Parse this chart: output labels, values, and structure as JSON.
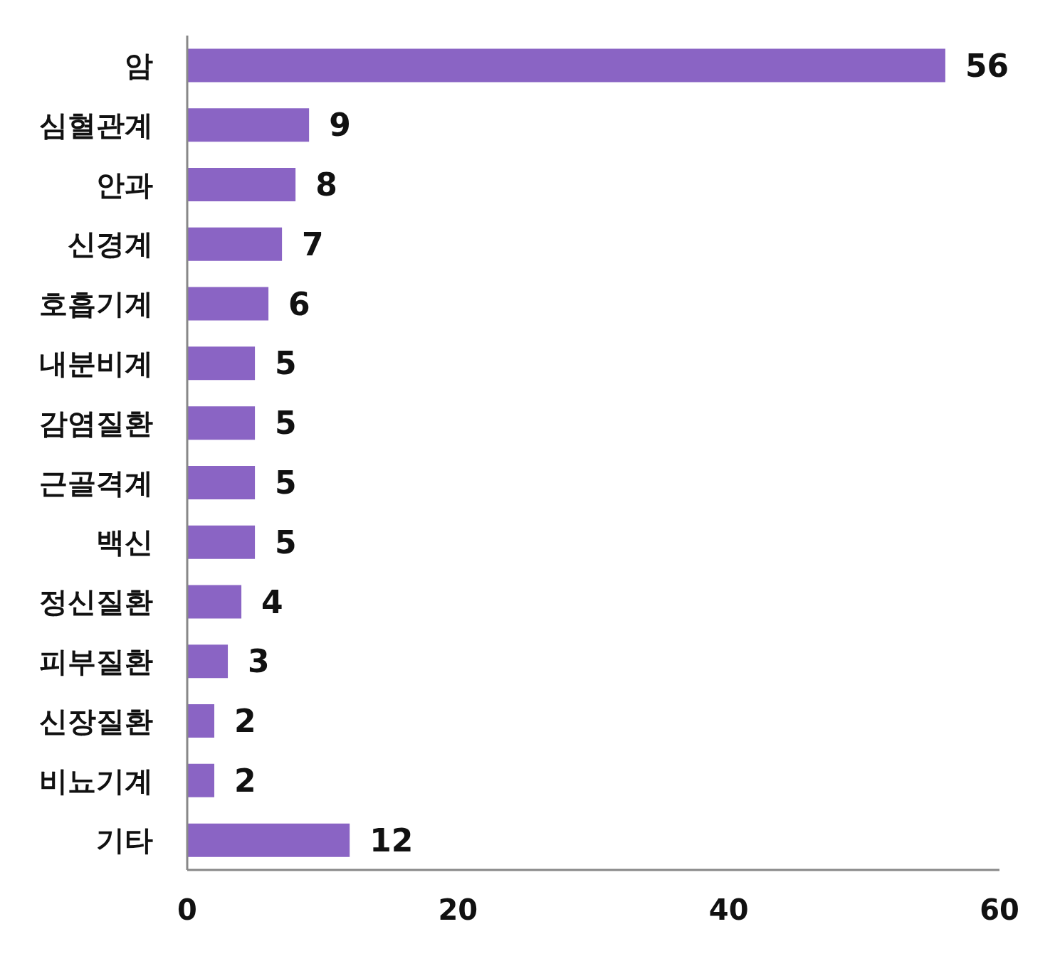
{
  "chart_data": {
    "type": "bar",
    "orientation": "horizontal",
    "categories": [
      "암",
      "심혈관계",
      "안과",
      "신경계",
      "호흡기계",
      "내분비계",
      "감염질환",
      "근골격계",
      "백신",
      "정신질환",
      "피부질환",
      "신장질환",
      "비뇨기계",
      "기타"
    ],
    "values": [
      56,
      9,
      8,
      7,
      6,
      5,
      5,
      5,
      5,
      4,
      3,
      2,
      2,
      12
    ],
    "color": "#8a64c4",
    "xlim": [
      0,
      60
    ],
    "xticks": [
      0,
      20,
      40,
      60
    ],
    "grid": false,
    "data_labels": true
  }
}
